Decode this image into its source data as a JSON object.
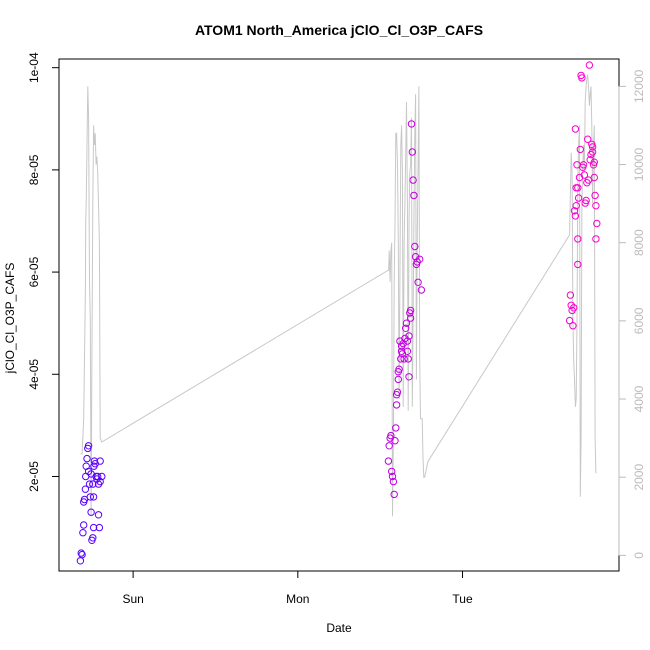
{
  "chart_data": {
    "type": "scatter",
    "title": "ATOM1 North_America jClO_Cl_O3P_CAFS",
    "xlabel": "Date",
    "ylabel": "jClO_Cl_O3P_CAFS",
    "x_ticks": [
      {
        "label": "Sun",
        "value": 1.0
      },
      {
        "label": "Mon",
        "value": 2.0
      },
      {
        "label": "Tue",
        "value": 3.0
      }
    ],
    "xlim": [
      0.55,
      3.95
    ],
    "y_ticks": [
      {
        "label": "2e-05",
        "value": 2e-05
      },
      {
        "label": "4e-05",
        "value": 4e-05
      },
      {
        "label": "6e-05",
        "value": 6e-05
      },
      {
        "label": "8e-05",
        "value": 8e-05
      },
      {
        "label": "1e-04",
        "value": 0.0001
      }
    ],
    "ylim": [
      1.5e-06,
      0.0001017
    ],
    "secondary_axis": {
      "ticks": [
        {
          "label": "0",
          "value": 0
        },
        {
          "label": "2000",
          "value": 2000
        },
        {
          "label": "4000",
          "value": 4000
        },
        {
          "label": "6000",
          "value": 6000
        },
        {
          "label": "8000",
          "value": 8000
        },
        {
          "label": "10000",
          "value": 10000
        },
        {
          "label": "12000",
          "value": 12000
        }
      ],
      "ylim": [
        -400,
        12700
      ],
      "color": "#bbbbbb"
    },
    "altitude_line": {
      "color": "#c8c8c8",
      "x": [
        0.68,
        0.69,
        0.7,
        0.71,
        0.712,
        0.715,
        0.72,
        0.725,
        0.73,
        0.735,
        0.74,
        0.745,
        0.75,
        0.755,
        0.76,
        0.765,
        0.77,
        0.775,
        0.78,
        0.785,
        0.79,
        0.795,
        0.8,
        0.81,
        2.55,
        2.552,
        2.555,
        2.56,
        2.565,
        2.57,
        2.575,
        2.58,
        2.585,
        2.59,
        2.595,
        2.6,
        2.605,
        2.61,
        2.615,
        2.62,
        2.625,
        2.63,
        2.635,
        2.64,
        2.645,
        2.65,
        2.655,
        2.66,
        2.665,
        2.67,
        2.675,
        2.68,
        2.685,
        2.69,
        2.695,
        2.7,
        2.705,
        2.71,
        2.715,
        2.72,
        2.725,
        2.73,
        2.735,
        2.74,
        2.745,
        2.75,
        2.755,
        2.76,
        2.765,
        2.77,
        2.78,
        2.79,
        3.65,
        3.66,
        3.665,
        3.67,
        3.675,
        3.68,
        3.685,
        3.69,
        3.695,
        3.7,
        3.705,
        3.71,
        3.715,
        3.72,
        3.725,
        3.73,
        3.735,
        3.74,
        3.745,
        3.75,
        3.755,
        3.76,
        3.765,
        3.77,
        3.775,
        3.78,
        3.785,
        3.79,
        3.795,
        3.8,
        3.805,
        3.81
      ],
      "y": [
        2600,
        2600,
        3500,
        6800,
        8500,
        9000,
        10500,
        12000,
        11200,
        7000,
        6000,
        1000,
        5000,
        9000,
        11000,
        10500,
        10800,
        10000,
        10200,
        9800,
        9000,
        8000,
        3000,
        2900,
        7300,
        7300,
        7800,
        7000,
        7800,
        8000,
        1000,
        3000,
        7000,
        8500,
        10800,
        10800,
        10000,
        8000,
        4000,
        7000,
        10500,
        11000,
        9800,
        3800,
        8000,
        9000,
        10200,
        11600,
        9000,
        3700,
        8500,
        9800,
        10000,
        11200,
        3800,
        6000,
        8500,
        10800,
        11800,
        4500,
        8000,
        10000,
        12000,
        5000,
        3500,
        3500,
        3500,
        2500,
        2000,
        2000,
        2200,
        2400,
        8200,
        10300,
        9800,
        6000,
        5000,
        4500,
        3800,
        4000,
        6000,
        9500,
        10500,
        11000,
        1500,
        3000,
        9000,
        10000,
        10500,
        9800,
        11600,
        12000,
        12200,
        12300,
        12000,
        11500,
        11800,
        12000,
        11000,
        9000,
        10500,
        11000,
        3000,
        2100
      ]
    },
    "series": [
      {
        "name": "",
        "points": [
          [
            0.68,
            3.5e-06
          ],
          [
            0.685,
            5e-06
          ],
          [
            0.69,
            4.7e-06
          ],
          [
            0.695,
            9e-06
          ],
          [
            0.7,
            1.05e-05
          ],
          [
            0.7,
            1.5e-05
          ],
          [
            0.705,
            1.55e-05
          ],
          [
            0.71,
            1.75e-05
          ],
          [
            0.712,
            2e-05
          ],
          [
            0.715,
            2.2e-05
          ],
          [
            0.72,
            2.35e-05
          ],
          [
            0.725,
            2.55e-05
          ],
          [
            0.73,
            2.6e-05
          ],
          [
            0.73,
            2.1e-05
          ],
          [
            0.735,
            1.85e-05
          ],
          [
            0.74,
            1.6e-05
          ],
          [
            0.745,
            1.3e-05
          ],
          [
            0.75,
            7.5e-06
          ],
          [
            0.755,
            8e-06
          ],
          [
            0.76,
            1e-05
          ],
          [
            0.762,
            2.2e-05
          ],
          [
            0.765,
            2.3e-05
          ],
          [
            0.77,
            2.25e-05
          ],
          [
            0.775,
            2e-05
          ],
          [
            0.78,
            1.95e-05
          ],
          [
            0.785,
            2e-05
          ],
          [
            0.79,
            1.85e-05
          ],
          [
            0.79,
            1.25e-05
          ],
          [
            0.795,
            1e-05
          ],
          [
            0.8,
            2.3e-05
          ],
          [
            0.8,
            1.9e-05
          ],
          [
            0.81,
            2e-05
          ],
          [
            0.76,
            1.6e-05
          ],
          [
            0.755,
            1.85e-05
          ],
          [
            0.745,
            2.05e-05
          ],
          [
            2.55,
            2.3e-05
          ],
          [
            2.555,
            2.6e-05
          ],
          [
            2.56,
            2.75e-05
          ],
          [
            2.565,
            2.8e-05
          ],
          [
            2.57,
            2.1e-05
          ],
          [
            2.575,
            2e-05
          ],
          [
            2.58,
            1.9e-05
          ],
          [
            2.585,
            1.65e-05
          ],
          [
            2.59,
            2.7e-05
          ],
          [
            2.595,
            2.95e-05
          ],
          [
            2.6,
            3.4e-05
          ],
          [
            2.605,
            3.65e-05
          ],
          [
            2.61,
            3.9e-05
          ],
          [
            2.615,
            4.1e-05
          ],
          [
            2.62,
            4.65e-05
          ],
          [
            2.625,
            4.3e-05
          ],
          [
            2.63,
            4.55e-05
          ],
          [
            2.635,
            4.4e-05
          ],
          [
            2.64,
            4.6e-05
          ],
          [
            2.645,
            4.3e-05
          ],
          [
            2.65,
            4.7e-05
          ],
          [
            2.655,
            4.9e-05
          ],
          [
            2.66,
            5e-05
          ],
          [
            2.665,
            4.65e-05
          ],
          [
            2.67,
            4.3e-05
          ],
          [
            2.675,
            3.95e-05
          ],
          [
            2.68,
            5.2e-05
          ],
          [
            2.685,
            5.1e-05
          ],
          [
            2.69,
            8.9e-05
          ],
          [
            2.695,
            8.35e-05
          ],
          [
            2.7,
            7.8e-05
          ],
          [
            2.705,
            7.5e-05
          ],
          [
            2.71,
            6.5e-05
          ],
          [
            2.715,
            6.3e-05
          ],
          [
            2.72,
            6.15e-05
          ],
          [
            2.725,
            6.2e-05
          ],
          [
            2.73,
            5.8e-05
          ],
          [
            2.74,
            6.25e-05
          ],
          [
            2.75,
            5.65e-05
          ],
          [
            2.6,
            3.6e-05
          ],
          [
            2.63,
            4.45e-05
          ],
          [
            2.665,
            4.45e-05
          ],
          [
            2.675,
            4.75e-05
          ],
          [
            2.685,
            5.25e-05
          ],
          [
            2.61,
            4.05e-05
          ],
          [
            3.65,
            5.05e-05
          ],
          [
            3.655,
            5.55e-05
          ],
          [
            3.66,
            5.35e-05
          ],
          [
            3.665,
            5.25e-05
          ],
          [
            3.67,
            4.95e-05
          ],
          [
            3.675,
            5.3e-05
          ],
          [
            3.68,
            7.2e-05
          ],
          [
            3.685,
            7.1e-05
          ],
          [
            3.69,
            7.3e-05
          ],
          [
            3.695,
            8.1e-05
          ],
          [
            3.7,
            7.65e-05
          ],
          [
            3.705,
            7.45e-05
          ],
          [
            3.71,
            7.85e-05
          ],
          [
            3.715,
            8.4e-05
          ],
          [
            3.72,
            9.85e-05
          ],
          [
            3.725,
            9.8e-05
          ],
          [
            3.73,
            8.05e-05
          ],
          [
            3.735,
            8.1e-05
          ],
          [
            3.74,
            7.9e-05
          ],
          [
            3.745,
            7.35e-05
          ],
          [
            3.75,
            7.4e-05
          ],
          [
            3.755,
            7.75e-05
          ],
          [
            3.76,
            8.6e-05
          ],
          [
            3.765,
            7.8e-05
          ],
          [
            3.77,
            0.0001005
          ],
          [
            3.775,
            8.2e-05
          ],
          [
            3.78,
            8.3e-05
          ],
          [
            3.785,
            8.5e-05
          ],
          [
            3.79,
            8.35e-05
          ],
          [
            3.795,
            8.1e-05
          ],
          [
            3.8,
            7.85e-05
          ],
          [
            3.805,
            7.5e-05
          ],
          [
            3.81,
            7.3e-05
          ],
          [
            3.81,
            6.65e-05
          ],
          [
            3.815,
            6.95e-05
          ],
          [
            3.69,
            7.65e-05
          ],
          [
            3.7,
            6.15e-05
          ],
          [
            3.7,
            6.65e-05
          ],
          [
            3.685,
            8.8e-05
          ],
          [
            3.79,
            8.45e-05
          ],
          [
            3.8,
            8.15e-05
          ]
        ]
      }
    ],
    "marker_color_scale": [
      "#5500ff",
      "#ff00cc"
    ],
    "grid": false,
    "legend": "none"
  }
}
